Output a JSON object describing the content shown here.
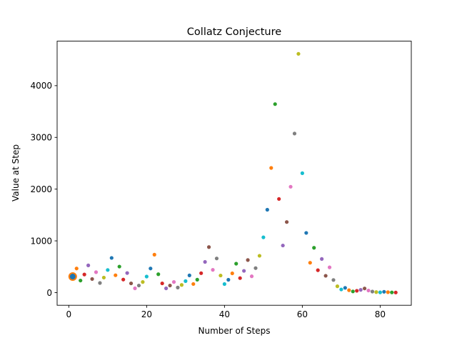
{
  "chart_data": {
    "type": "scatter",
    "title": "Collatz Conjecture",
    "xlabel": "Number of Steps",
    "ylabel": "Value at Step",
    "xlim": [
      -3,
      88
    ],
    "ylim": [
      -245,
      4860
    ],
    "xticks": [
      0,
      20,
      40,
      60,
      80
    ],
    "yticks": [
      0,
      1000,
      2000,
      3000,
      4000
    ],
    "grid": false,
    "start_marker": {
      "x": 1,
      "y": 310
    },
    "palette": [
      "#1f77b4",
      "#ff7f0e",
      "#2ca02c",
      "#d62728",
      "#9467bd",
      "#8c564b",
      "#e377c2",
      "#7f7f7f",
      "#bcbd22",
      "#17becf"
    ],
    "x": [
      1,
      2,
      3,
      4,
      5,
      6,
      7,
      8,
      9,
      10,
      11,
      12,
      13,
      14,
      15,
      16,
      17,
      18,
      19,
      20,
      21,
      22,
      23,
      24,
      25,
      26,
      27,
      28,
      29,
      30,
      31,
      32,
      33,
      34,
      35,
      36,
      37,
      38,
      39,
      40,
      41,
      42,
      43,
      44,
      45,
      46,
      47,
      48,
      49,
      50,
      51,
      52,
      53,
      54,
      55,
      56,
      57,
      58,
      59,
      60,
      61,
      62,
      63,
      64,
      65,
      66,
      67,
      68,
      69,
      70,
      71,
      72,
      73,
      74,
      75,
      76,
      77,
      78,
      79,
      80,
      81,
      82,
      83,
      84
    ],
    "y": [
      310,
      466,
      233,
      350,
      526,
      263,
      395,
      186,
      290,
      437,
      670,
      335,
      503,
      252,
      378,
      178,
      82,
      137,
      205,
      310,
      466,
      733,
      355,
      178,
      82,
      137,
      205,
      98,
      148,
      222,
      333,
      166,
      250,
      375,
      593,
      880,
      440,
      660,
      330,
      165,
      248,
      372,
      559,
      280,
      420,
      630,
      315,
      473,
      712,
      1068,
      1602,
      2410,
      3643,
      1810,
      910,
      1364,
      2046,
      3074,
      4615,
      2308,
      1154,
      577,
      866,
      433,
      650,
      325,
      488,
      244,
      122,
      61,
      92,
      46,
      23,
      35,
      53,
      80,
      40,
      20,
      10,
      5,
      16,
      8,
      4,
      2
    ]
  }
}
